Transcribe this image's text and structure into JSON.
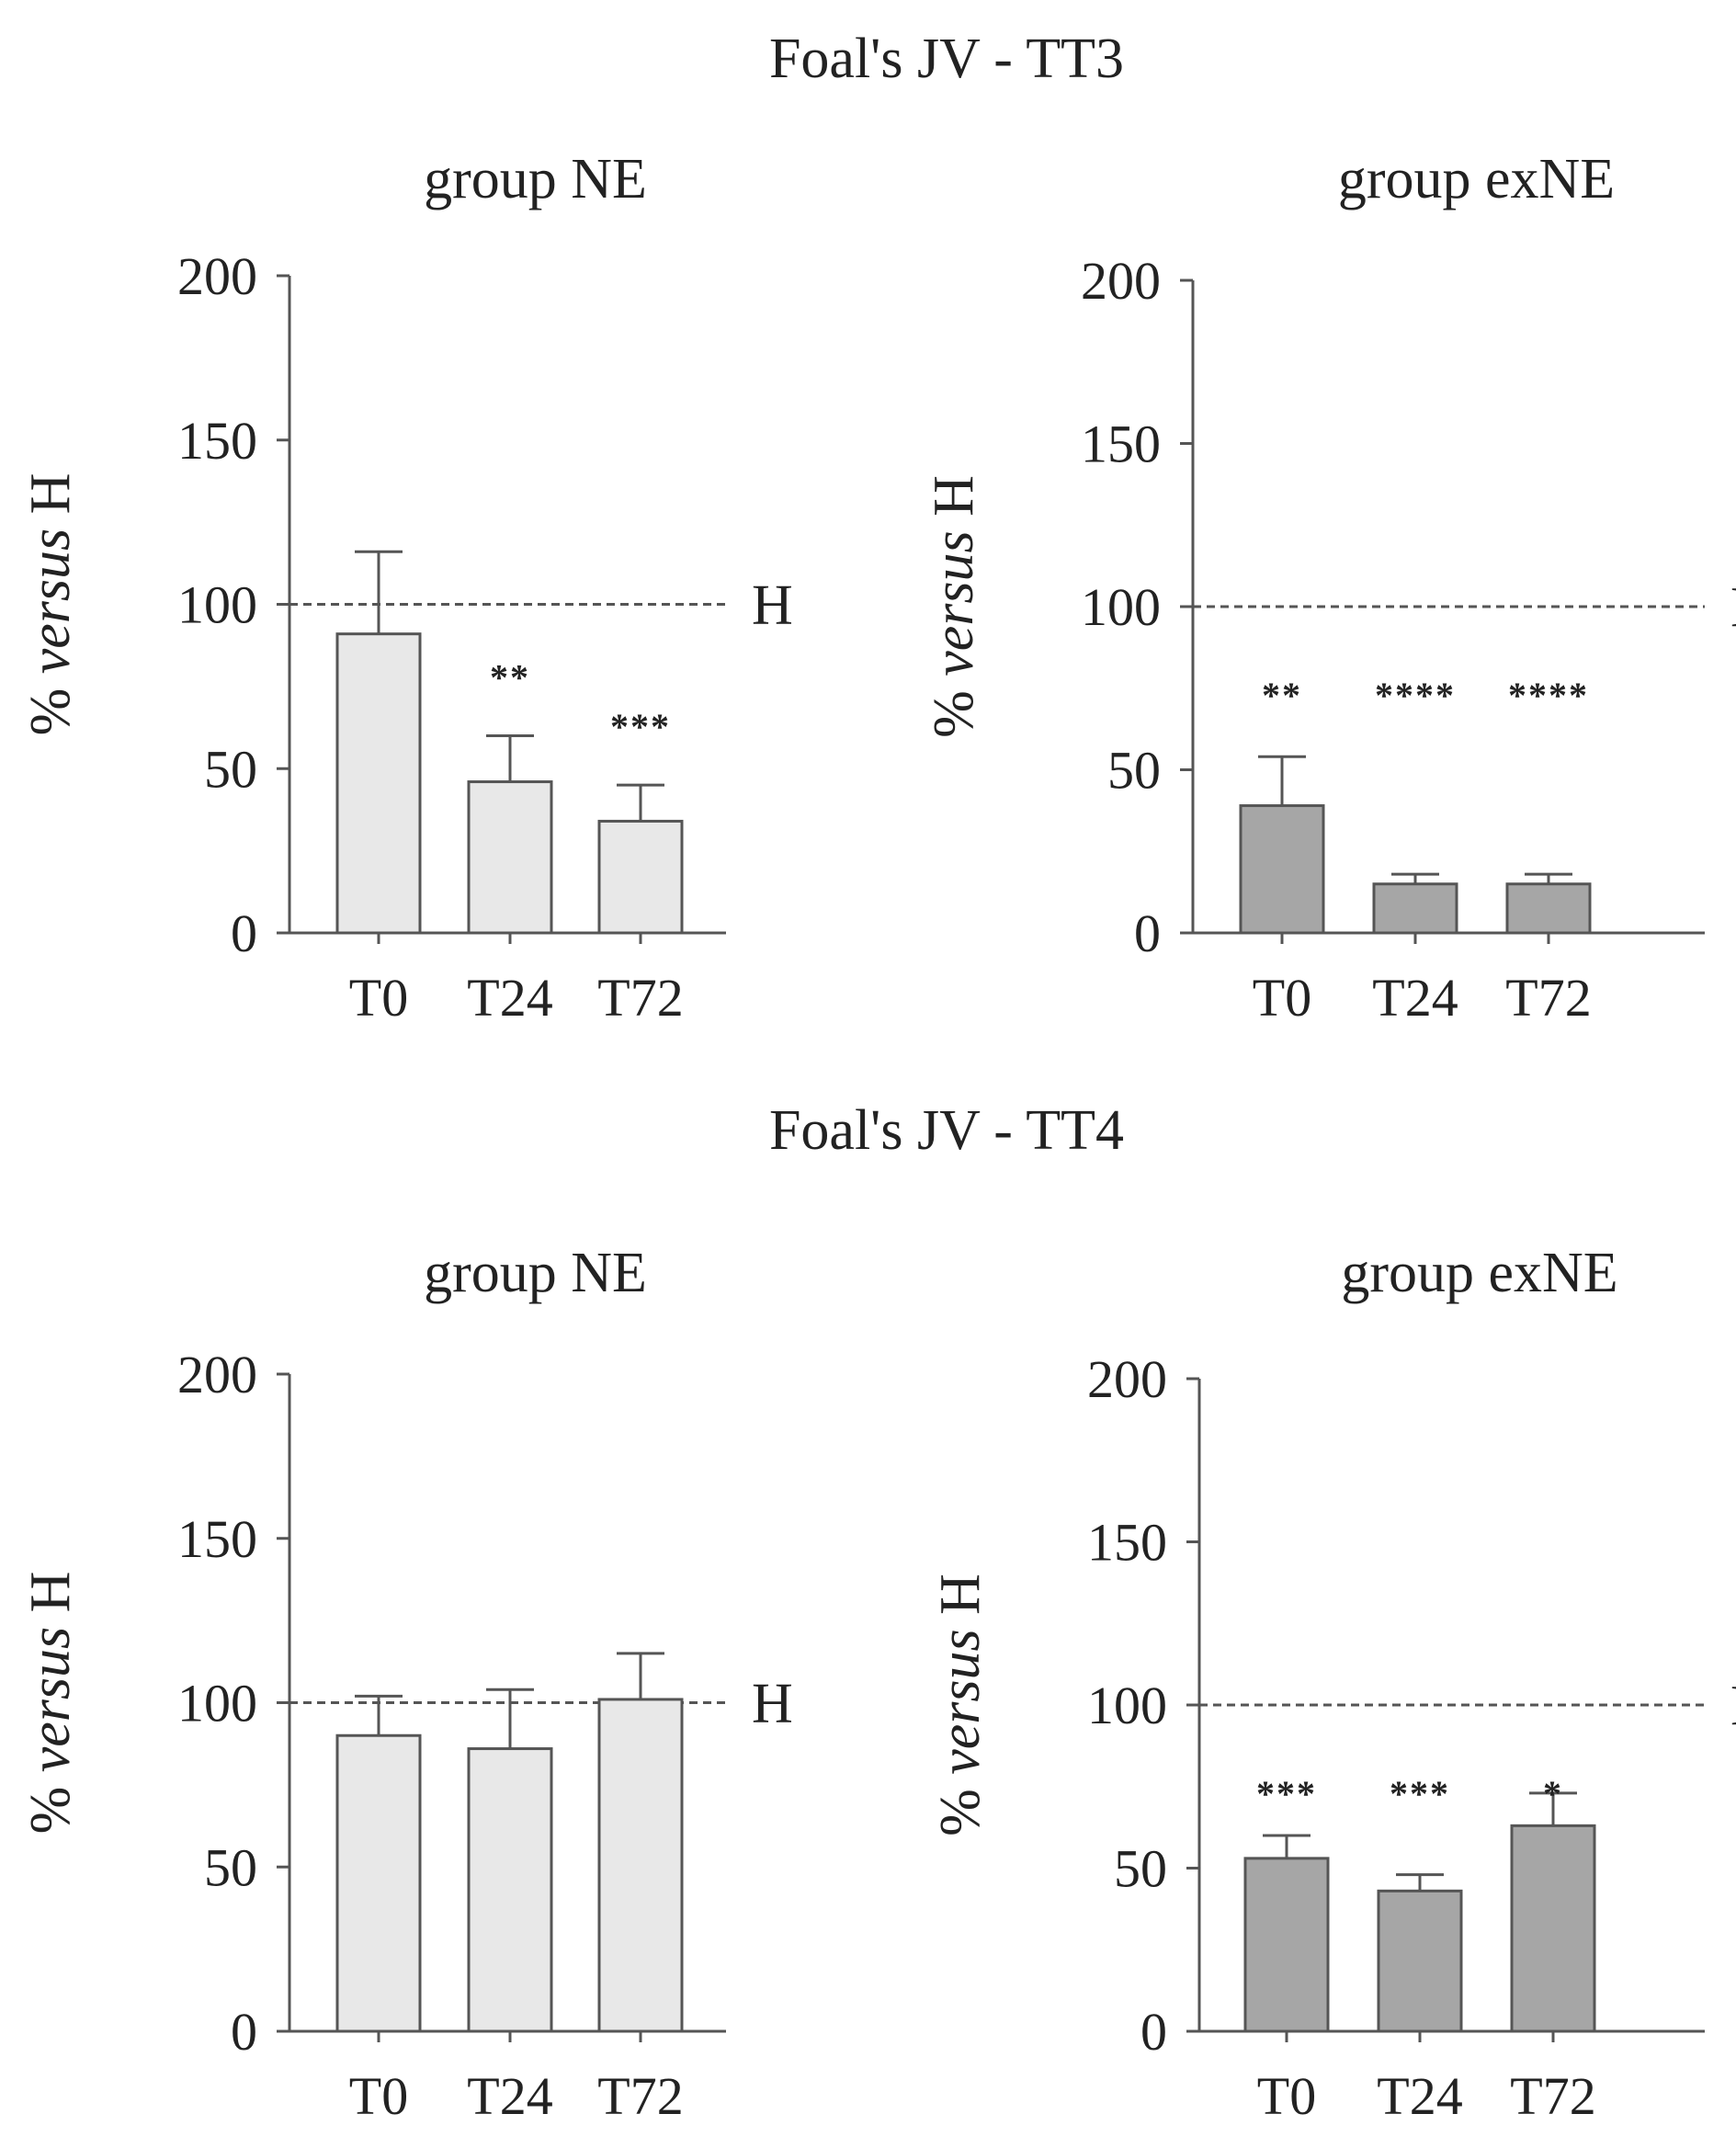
{
  "colors": {
    "ne_fill": "#e8e8e8",
    "exne_fill": "#a6a6a6",
    "stroke": "#555555",
    "ref_line": "#555555"
  },
  "chart_data": [
    {
      "type": "bar",
      "figure_title": "Foal's JV - TT3",
      "title": "group NE",
      "ylabel_prefix": "% ",
      "ylabel_italic": "versus",
      "ylabel_suffix": " H",
      "categories": [
        "T0",
        "T24",
        "T72"
      ],
      "values": [
        91,
        46,
        34
      ],
      "errors": [
        25,
        14,
        11
      ],
      "significance": [
        "",
        "**",
        "***"
      ],
      "ylim": [
        0,
        200
      ],
      "yticks": [
        "0",
        "50",
        "100",
        "150",
        "200"
      ],
      "ref_value": 100,
      "ref_label": "H",
      "fill": "ne"
    },
    {
      "type": "bar",
      "figure_title": "Foal's JV - TT3",
      "title": "group exNE",
      "ylabel_prefix": "% ",
      "ylabel_italic": "versus",
      "ylabel_suffix": " H",
      "categories": [
        "T0",
        "T24",
        "T72"
      ],
      "values": [
        39,
        15,
        15
      ],
      "errors": [
        15,
        3,
        3
      ],
      "significance": [
        "**",
        "****",
        "****"
      ],
      "ylim": [
        0,
        200
      ],
      "yticks": [
        "0",
        "50",
        "100",
        "150",
        "200"
      ],
      "ref_value": 100,
      "ref_label": "H",
      "fill": "exne"
    },
    {
      "type": "bar",
      "figure_title": "Foal's JV - TT4",
      "title": "group NE",
      "ylabel_prefix": "% ",
      "ylabel_italic": "versus",
      "ylabel_suffix": " H",
      "categories": [
        "T0",
        "T24",
        "T72"
      ],
      "values": [
        90,
        86,
        101
      ],
      "errors": [
        12,
        18,
        14
      ],
      "significance": [
        "",
        "",
        ""
      ],
      "ylim": [
        0,
        200
      ],
      "yticks": [
        "0",
        "50",
        "100",
        "150",
        "200"
      ],
      "ref_value": 100,
      "ref_label": "H",
      "fill": "ne"
    },
    {
      "type": "bar",
      "figure_title": "Foal's JV - TT4",
      "title": "group exNE",
      "ylabel_prefix": "% ",
      "ylabel_italic": "versus",
      "ylabel_suffix": " H",
      "categories": [
        "T0",
        "T24",
        "T72"
      ],
      "values": [
        53,
        43,
        63
      ],
      "errors": [
        7,
        5,
        10
      ],
      "significance": [
        "***",
        "***",
        "*"
      ],
      "ylim": [
        0,
        200
      ],
      "yticks": [
        "0",
        "50",
        "100",
        "150",
        "200"
      ],
      "ref_value": 100,
      "ref_label": "H",
      "fill": "exne"
    }
  ]
}
